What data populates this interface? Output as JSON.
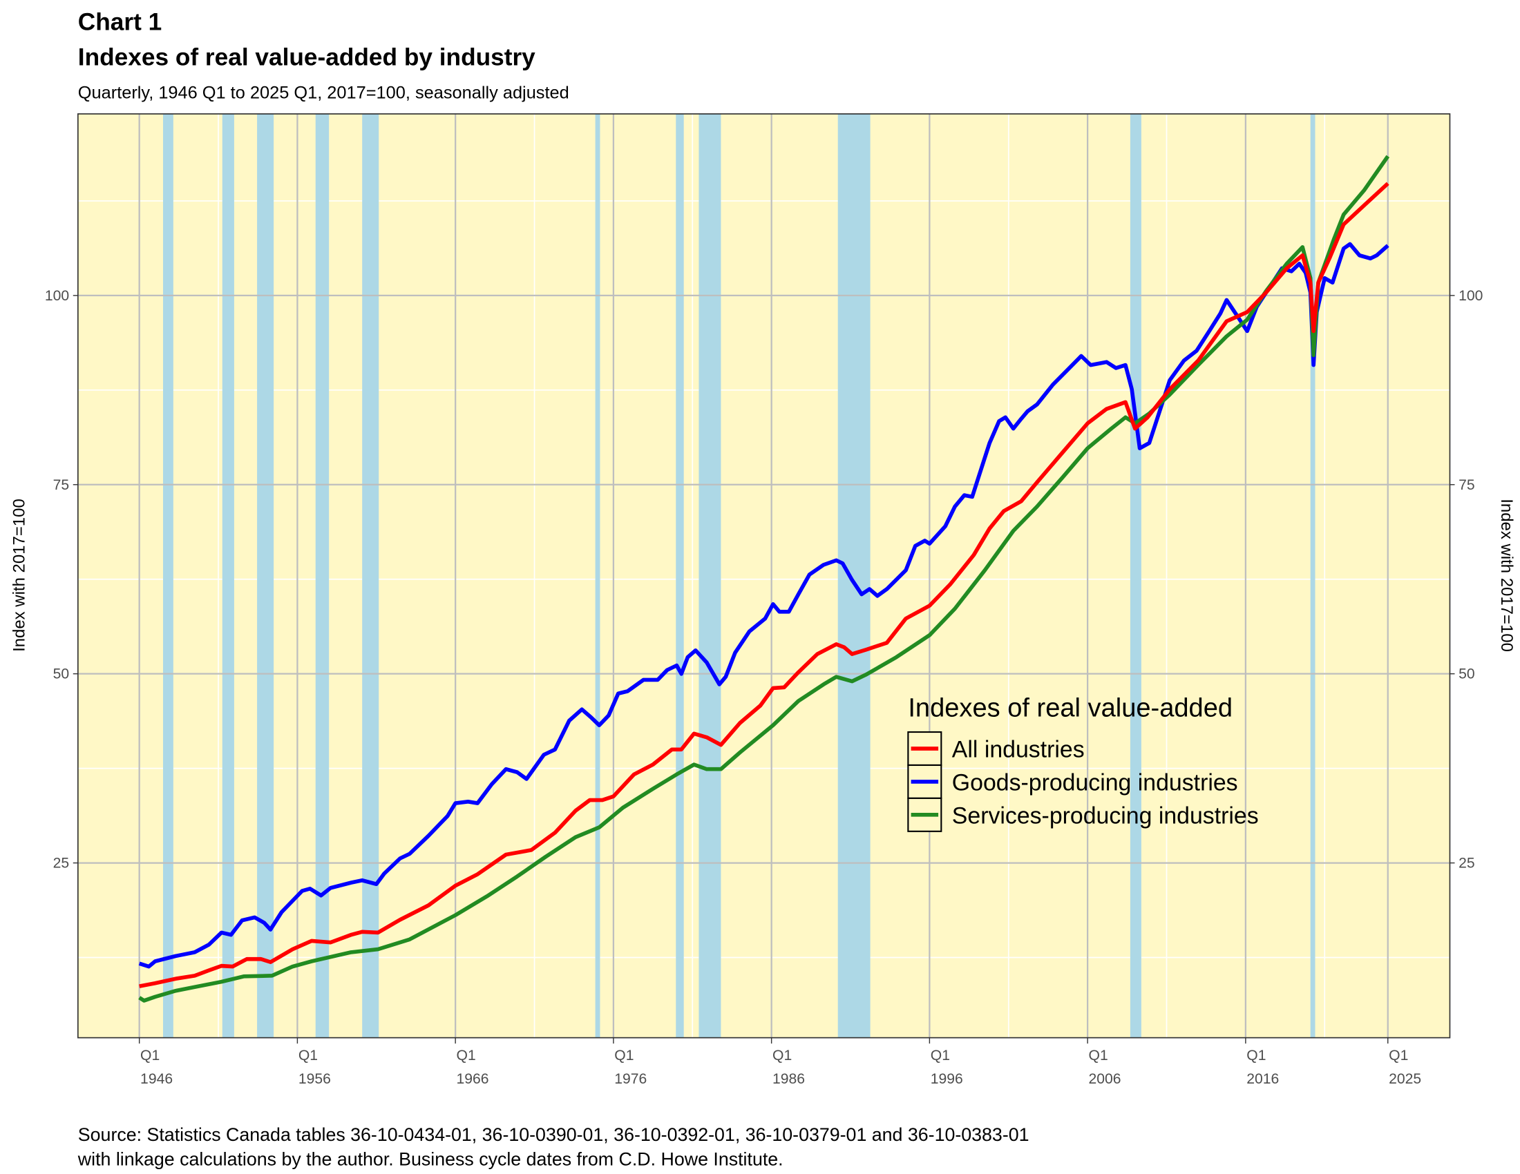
{
  "chart_data": {
    "type": "line",
    "label": "Chart 1",
    "title": "Indexes of real value-added by industry",
    "subtitle": "Quarterly, 1946 Q1 to 2025 Q1, 2017=100, seasonally adjusted",
    "ylabel": "Index with 2017=100",
    "ylabel_right": "Index with 2017=100",
    "xlabel": "",
    "xlim": [
      1942,
      2029
    ],
    "ylim": [
      1.9,
      124
    ],
    "grid": true,
    "yticks": [
      25,
      50,
      75,
      100
    ],
    "xticks": [
      {
        "year": 1946,
        "q": "Q1",
        "label": "1946"
      },
      {
        "year": 1956,
        "q": "Q1",
        "label": "1956"
      },
      {
        "year": 1966,
        "q": "Q1",
        "label": "1966"
      },
      {
        "year": 1976,
        "q": "Q1",
        "label": "1976"
      },
      {
        "year": 1986,
        "q": "Q1",
        "label": "1986"
      },
      {
        "year": 1996,
        "q": "Q1",
        "label": "1996"
      },
      {
        "year": 2006,
        "q": "Q1",
        "label": "2006"
      },
      {
        "year": 2016,
        "q": "Q1",
        "label": "2016"
      },
      {
        "year": 2025,
        "q": "Q1",
        "label": "2025"
      }
    ],
    "recessions": [
      [
        1947.5,
        1948.15
      ],
      [
        1951.25,
        1952.0
      ],
      [
        1953.45,
        1954.5
      ],
      [
        1957.15,
        1958.0
      ],
      [
        1960.1,
        1961.15
      ],
      [
        1974.85,
        1975.15
      ],
      [
        1979.95,
        1980.45
      ],
      [
        1981.4,
        1982.8
      ],
      [
        1990.2,
        1992.25
      ],
      [
        2008.7,
        2009.4
      ],
      [
        2020.1,
        2020.4
      ]
    ],
    "legend": {
      "title": "Indexes of real value-added",
      "position": "center-right"
    },
    "series": [
      {
        "name": "All industries",
        "color": "#ff0000",
        "points": [
          [
            1946,
            8.7
          ],
          [
            1947,
            9.1
          ],
          [
            1948.3,
            9.7
          ],
          [
            1949.5,
            10.1
          ],
          [
            1950.4,
            10.8
          ],
          [
            1951.2,
            11.4
          ],
          [
            1951.9,
            11.3
          ],
          [
            1952.8,
            12.3
          ],
          [
            1953.7,
            12.3
          ],
          [
            1954.3,
            11.9
          ],
          [
            1955.7,
            13.6
          ],
          [
            1956.9,
            14.7
          ],
          [
            1958.1,
            14.5
          ],
          [
            1959.4,
            15.5
          ],
          [
            1960.1,
            15.9
          ],
          [
            1961.1,
            15.8
          ],
          [
            1962.5,
            17.5
          ],
          [
            1964.3,
            19.4
          ],
          [
            1966,
            22
          ],
          [
            1967.4,
            23.5
          ],
          [
            1969.2,
            26.1
          ],
          [
            1970.8,
            26.7
          ],
          [
            1972.3,
            29
          ],
          [
            1973.6,
            31.9
          ],
          [
            1974.5,
            33.3
          ],
          [
            1975.3,
            33.3
          ],
          [
            1976,
            33.8
          ],
          [
            1977.3,
            36.7
          ],
          [
            1978.5,
            38
          ],
          [
            1979.7,
            40
          ],
          [
            1980.3,
            40
          ],
          [
            1981.1,
            42.1
          ],
          [
            1981.9,
            41.6
          ],
          [
            1982.8,
            40.6
          ],
          [
            1984,
            43.5
          ],
          [
            1985.3,
            45.8
          ],
          [
            1986.1,
            48.1
          ],
          [
            1986.8,
            48.2
          ],
          [
            1987.7,
            50.2
          ],
          [
            1988.9,
            52.6
          ],
          [
            1990.1,
            53.9
          ],
          [
            1990.6,
            53.5
          ],
          [
            1991.1,
            52.6
          ],
          [
            1992,
            53.2
          ],
          [
            1993.3,
            54.1
          ],
          [
            1994.5,
            57.3
          ],
          [
            1996,
            59
          ],
          [
            1997.3,
            61.8
          ],
          [
            1998.8,
            65.7
          ],
          [
            1999.8,
            69.2
          ],
          [
            2000.7,
            71.5
          ],
          [
            2001.8,
            72.8
          ],
          [
            2002.8,
            75.3
          ],
          [
            2004.4,
            79.2
          ],
          [
            2006,
            83.1
          ],
          [
            2007.2,
            85
          ],
          [
            2008.4,
            85.9
          ],
          [
            2009,
            82.4
          ],
          [
            2009.8,
            83.9
          ],
          [
            2011.2,
            87.6
          ],
          [
            2013,
            91.4
          ],
          [
            2014.8,
            96.6
          ],
          [
            2016.1,
            97.8
          ],
          [
            2017.3,
            100.4
          ],
          [
            2018.6,
            103.6
          ],
          [
            2019.6,
            105.3
          ],
          [
            2020.1,
            101.7
          ],
          [
            2020.3,
            95.3
          ],
          [
            2020.6,
            101.7
          ],
          [
            2021.3,
            104.9
          ],
          [
            2022.2,
            109.4
          ],
          [
            2023.5,
            111.9
          ],
          [
            2025,
            114.8
          ]
        ]
      },
      {
        "name": "Goods-producing industries",
        "color": "#0000ff",
        "points": [
          [
            1946,
            11.7
          ],
          [
            1946.6,
            11.3
          ],
          [
            1947,
            12
          ],
          [
            1948.3,
            12.7
          ],
          [
            1949.5,
            13.2
          ],
          [
            1950.4,
            14.2
          ],
          [
            1951.2,
            15.8
          ],
          [
            1951.8,
            15.5
          ],
          [
            1952.5,
            17.4
          ],
          [
            1953.3,
            17.8
          ],
          [
            1953.9,
            17.1
          ],
          [
            1954.3,
            16.2
          ],
          [
            1955,
            18.5
          ],
          [
            1956.3,
            21.3
          ],
          [
            1956.8,
            21.6
          ],
          [
            1957.5,
            20.7
          ],
          [
            1958.1,
            21.7
          ],
          [
            1959.4,
            22.4
          ],
          [
            1960.1,
            22.7
          ],
          [
            1961,
            22.2
          ],
          [
            1961.5,
            23.6
          ],
          [
            1962.5,
            25.6
          ],
          [
            1963.1,
            26.2
          ],
          [
            1964.3,
            28.6
          ],
          [
            1965.5,
            31.2
          ],
          [
            1966,
            32.9
          ],
          [
            1966.8,
            33.1
          ],
          [
            1967.4,
            32.9
          ],
          [
            1968.3,
            35.4
          ],
          [
            1969.2,
            37.4
          ],
          [
            1969.9,
            37
          ],
          [
            1970.5,
            36.1
          ],
          [
            1971.6,
            39.3
          ],
          [
            1972.3,
            40
          ],
          [
            1973.2,
            43.8
          ],
          [
            1974,
            45.3
          ],
          [
            1974.6,
            44.2
          ],
          [
            1975.1,
            43.2
          ],
          [
            1975.7,
            44.5
          ],
          [
            1976.3,
            47.4
          ],
          [
            1976.9,
            47.7
          ],
          [
            1977.9,
            49.2
          ],
          [
            1978.8,
            49.2
          ],
          [
            1979.4,
            50.5
          ],
          [
            1980,
            51.1
          ],
          [
            1980.3,
            50
          ],
          [
            1980.7,
            52.2
          ],
          [
            1981.2,
            53.1
          ],
          [
            1981.9,
            51.5
          ],
          [
            1982.7,
            48.6
          ],
          [
            1983.1,
            49.6
          ],
          [
            1983.7,
            52.8
          ],
          [
            1984.6,
            55.6
          ],
          [
            1985.6,
            57.3
          ],
          [
            1986.1,
            59.2
          ],
          [
            1986.5,
            58.2
          ],
          [
            1987.1,
            58.2
          ],
          [
            1987.7,
            60.5
          ],
          [
            1988.4,
            63.1
          ],
          [
            1989.3,
            64.4
          ],
          [
            1990.1,
            65
          ],
          [
            1990.5,
            64.6
          ],
          [
            1991.1,
            62.4
          ],
          [
            1991.7,
            60.5
          ],
          [
            1992.2,
            61.2
          ],
          [
            1992.7,
            60.3
          ],
          [
            1993.3,
            61.2
          ],
          [
            1994.5,
            63.7
          ],
          [
            1995.1,
            66.9
          ],
          [
            1995.7,
            67.6
          ],
          [
            1996,
            67.2
          ],
          [
            1997,
            69.5
          ],
          [
            1997.6,
            72.1
          ],
          [
            1998.2,
            73.6
          ],
          [
            1998.7,
            73.4
          ],
          [
            1999.1,
            76
          ],
          [
            1999.8,
            80.5
          ],
          [
            2000.4,
            83.4
          ],
          [
            2000.8,
            83.9
          ],
          [
            2001.3,
            82.4
          ],
          [
            2001.8,
            83.7
          ],
          [
            2002.2,
            84.7
          ],
          [
            2002.8,
            85.6
          ],
          [
            2003.8,
            88.2
          ],
          [
            2004.7,
            90.1
          ],
          [
            2005.6,
            92
          ],
          [
            2006.2,
            90.8
          ],
          [
            2007.2,
            91.2
          ],
          [
            2007.8,
            90.4
          ],
          [
            2008.4,
            90.8
          ],
          [
            2008.8,
            87.6
          ],
          [
            2009.3,
            79.8
          ],
          [
            2009.9,
            80.5
          ],
          [
            2010.7,
            85.6
          ],
          [
            2011.2,
            88.8
          ],
          [
            2012.1,
            91.4
          ],
          [
            2012.9,
            92.7
          ],
          [
            2013.7,
            95.3
          ],
          [
            2014.4,
            97.6
          ],
          [
            2014.8,
            99.4
          ],
          [
            2015.5,
            97.2
          ],
          [
            2016.1,
            95.3
          ],
          [
            2016.7,
            98.5
          ],
          [
            2017.3,
            100.4
          ],
          [
            2018.3,
            103.6
          ],
          [
            2018.9,
            103.2
          ],
          [
            2019.4,
            104.2
          ],
          [
            2019.8,
            103
          ],
          [
            2020.1,
            100.4
          ],
          [
            2020.3,
            90.8
          ],
          [
            2020.5,
            97.8
          ],
          [
            2021,
            102.3
          ],
          [
            2021.5,
            101.7
          ],
          [
            2022.2,
            106.2
          ],
          [
            2022.6,
            106.8
          ],
          [
            2023.2,
            105.3
          ],
          [
            2023.9,
            104.9
          ],
          [
            2024.3,
            105.3
          ],
          [
            2025,
            106.6
          ]
        ]
      },
      {
        "name": "Services-producing industries",
        "color": "#228b22",
        "points": [
          [
            1946,
            7.2
          ],
          [
            1946.3,
            6.8
          ],
          [
            1947,
            7.3
          ],
          [
            1948.3,
            8.1
          ],
          [
            1949.5,
            8.6
          ],
          [
            1951.2,
            9.3
          ],
          [
            1952.6,
            10
          ],
          [
            1954.4,
            10.1
          ],
          [
            1955.7,
            11.3
          ],
          [
            1956.9,
            12
          ],
          [
            1959.4,
            13.2
          ],
          [
            1961.1,
            13.6
          ],
          [
            1963.1,
            14.9
          ],
          [
            1966,
            18.1
          ],
          [
            1968,
            20.6
          ],
          [
            1969.9,
            23.2
          ],
          [
            1971.7,
            25.8
          ],
          [
            1973.6,
            28.4
          ],
          [
            1975.1,
            29.7
          ],
          [
            1976.6,
            32.3
          ],
          [
            1978.5,
            34.8
          ],
          [
            1980,
            36.7
          ],
          [
            1981.1,
            38
          ],
          [
            1981.9,
            37.4
          ],
          [
            1982.8,
            37.4
          ],
          [
            1984,
            39.6
          ],
          [
            1986.1,
            43.2
          ],
          [
            1987.7,
            46.4
          ],
          [
            1989.3,
            48.6
          ],
          [
            1990.1,
            49.6
          ],
          [
            1991.1,
            49
          ],
          [
            1992,
            49.9
          ],
          [
            1993.9,
            52.2
          ],
          [
            1996,
            55.1
          ],
          [
            1997.6,
            58.6
          ],
          [
            1999.5,
            63.7
          ],
          [
            2001.3,
            68.9
          ],
          [
            2002.8,
            72.1
          ],
          [
            2004.4,
            75.9
          ],
          [
            2006,
            79.8
          ],
          [
            2007.5,
            82.4
          ],
          [
            2008.4,
            83.9
          ],
          [
            2009,
            83.1
          ],
          [
            2009.9,
            84.4
          ],
          [
            2011.2,
            86.9
          ],
          [
            2013,
            90.8
          ],
          [
            2014.8,
            94.6
          ],
          [
            2016.1,
            96.8
          ],
          [
            2017.3,
            100.6
          ],
          [
            2018.6,
            104.2
          ],
          [
            2019.6,
            106.4
          ],
          [
            2020.1,
            102.3
          ],
          [
            2020.3,
            92.1
          ],
          [
            2020.6,
            101.7
          ],
          [
            2021.6,
            107.5
          ],
          [
            2022.2,
            110.7
          ],
          [
            2023.5,
            113.9
          ],
          [
            2025,
            118.4
          ]
        ]
      }
    ],
    "source_line1": "Source: Statistics Canada tables 36-10-0434-01, 36-10-0390-01, 36-10-0392-01, 36-10-0379-01 and 36-10-0383-01",
    "source_line2": "with linkage calculations by the author. Business cycle dates from C.D. Howe Institute."
  }
}
